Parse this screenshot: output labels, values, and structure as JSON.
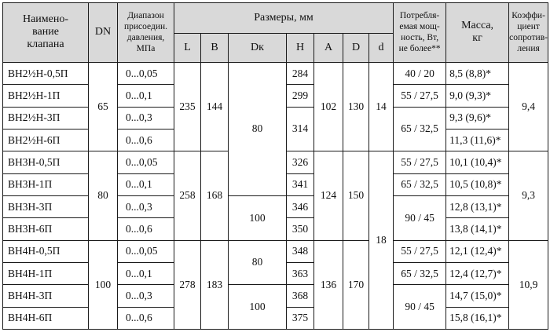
{
  "headers": {
    "name": "Наимено-\nвание\nклапана",
    "dn": "DN",
    "pressure_range": "Диапазон\nприсоедин.\nдавления,\nМПа",
    "dimensions": "Размеры, мм",
    "dim_L": "L",
    "dim_B": "B",
    "dim_Dk": "Dк",
    "dim_H": "H",
    "dim_A": "A",
    "dim_D": "D",
    "dim_d": "d",
    "power": "Потребля-\nемая мощ-\nность, Вт,\nне более**",
    "mass": "Масса,\nкг",
    "coef": "Коэффи-\nциент\nсопротив-\nления"
  },
  "names": [
    "ВН2½Н-0,5П",
    "ВН2½Н-1П",
    "ВН2½Н-3П",
    "ВН2½Н-6П",
    "ВН3Н-0,5П",
    "ВН3Н-1П",
    "ВН3Н-3П",
    "ВН3Н-6П",
    "ВН4Н-0,5П",
    "ВН4Н-1П",
    "ВН4Н-3П",
    "ВН4Н-6П"
  ],
  "ranges": [
    "0...0,05",
    "0...0,1",
    "0...0,3",
    "0...0,6",
    "0...0,05",
    "0...0,1",
    "0...0,3",
    "0...0,6",
    "0...0,05",
    "0...0,1",
    "0...0,3",
    "0...0,6"
  ],
  "h_values": [
    "284",
    "299",
    "314",
    "326",
    "341",
    "346",
    "350",
    "348",
    "363",
    "368",
    "375"
  ],
  "masses": [
    "8,5 (8,8)*",
    "9,0 (9,3)*",
    "9,3 (9,6)*",
    "11,3 (11,6)*",
    "10,1 (10,4)*",
    "10,5 (10,8)*",
    "12,8 (13,1)*",
    "13,8 (14,1)*",
    "12,1 (12,4)*",
    "12,4 (12,7)*",
    "14,7 (15,0)*",
    "15,8 (16,1)*"
  ],
  "groups": [
    {
      "dn": "65",
      "L": "235",
      "B": "144",
      "A": "102",
      "D": "130",
      "coef": "9,4"
    },
    {
      "dn": "80",
      "L": "258",
      "B": "168",
      "A": "124",
      "D": "150",
      "coef": "9,3"
    },
    {
      "dn": "100",
      "L": "278",
      "B": "183",
      "A": "136",
      "D": "170",
      "coef": "10,9"
    }
  ],
  "dk_values": [
    "80",
    "100",
    "80",
    "100"
  ],
  "d_values": [
    "14",
    "18"
  ],
  "power": [
    "40 / 20",
    "55 / 27,5",
    "65 / 32,5",
    "55 / 27,5",
    "65 / 32,5",
    "90 / 45",
    "55 / 27,5",
    "65 / 32,5",
    "90 / 45"
  ]
}
